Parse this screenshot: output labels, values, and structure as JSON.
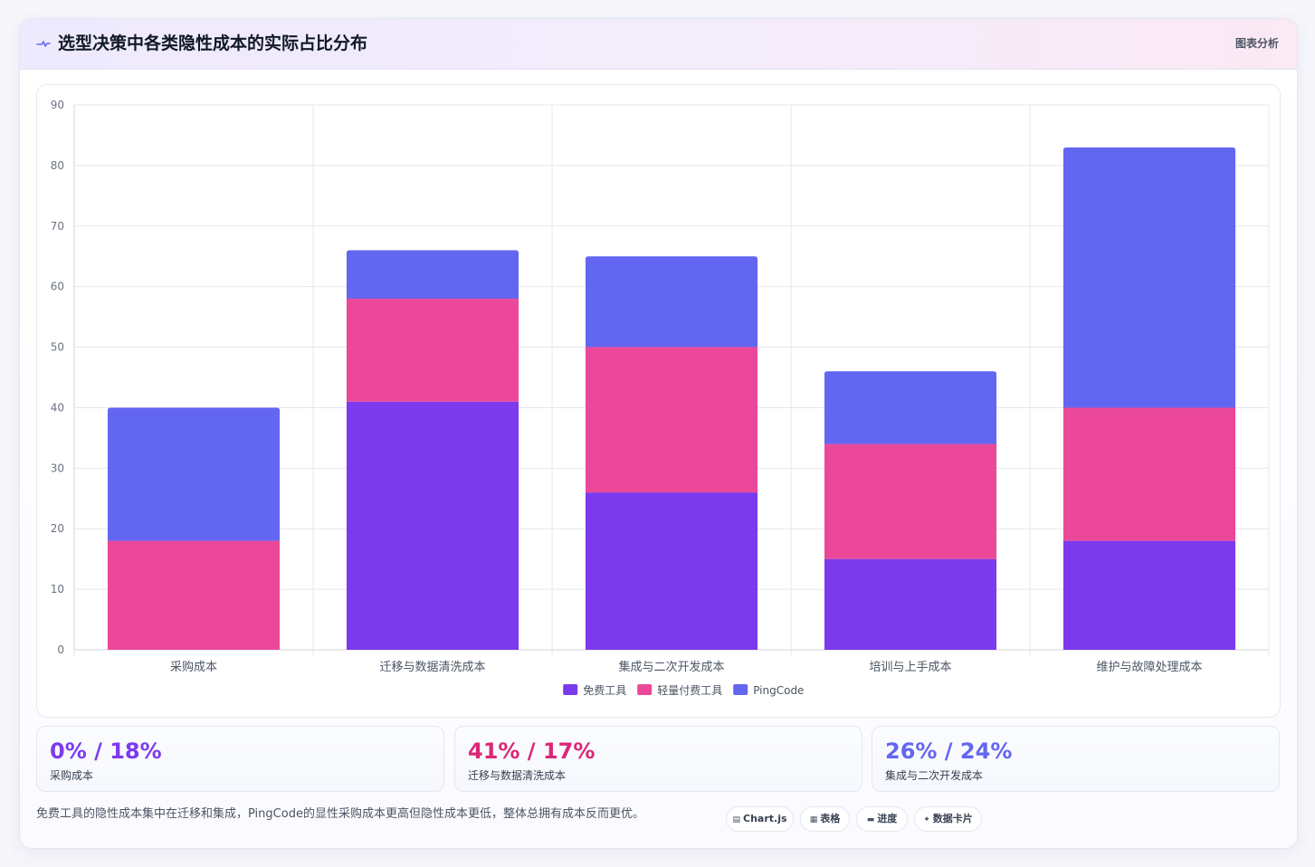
{
  "header": {
    "icon": "pulse-icon",
    "title": "选型决策中各类隐性成本的实际占比分布",
    "right_label": "图表分析"
  },
  "chart_data": {
    "type": "bar",
    "stacked": true,
    "categories": [
      "采购成本",
      "迁移与数据清洗成本",
      "集成与二次开发成本",
      "培训与上手成本",
      "维护与故障处理成本"
    ],
    "series": [
      {
        "name": "免费工具",
        "values": [
          0,
          41,
          26,
          15,
          18
        ],
        "color": "#7c3aed"
      },
      {
        "name": "轻量付费工具",
        "values": [
          18,
          17,
          24,
          19,
          22
        ],
        "color": "#ec4899"
      },
      {
        "name": "PingCode",
        "values": [
          22,
          8,
          15,
          12,
          43
        ],
        "color": "#6366f1"
      }
    ],
    "ylim": [
      0,
      90
    ],
    "yticks": [
      0,
      10,
      20,
      30,
      40,
      50,
      60,
      70,
      80,
      90
    ],
    "grid": true,
    "legend": "bottom"
  },
  "stats": [
    {
      "value": "0% / 18%",
      "label": "采购成本",
      "color": "#7c3aed"
    },
    {
      "value": "41% / 17%",
      "label": "迁移与数据清洗成本",
      "color": "#db2777"
    },
    {
      "value": "26% / 24%",
      "label": "集成与二次开发成本",
      "color": "#6366f1"
    }
  ],
  "note": "免费工具的隐性成本集中在迁移和集成，PingCode的显性采购成本更高但隐性成本更低，整体总拥有成本反而更优。",
  "chips": [
    {
      "icon": "chart-icon",
      "glyph": "▤",
      "label": "Chart.js"
    },
    {
      "icon": "table-icon",
      "glyph": "▦",
      "label": "表格"
    },
    {
      "icon": "progress-icon",
      "glyph": "▬",
      "label": "进度"
    },
    {
      "icon": "sparkle-icon",
      "glyph": "✦",
      "label": "数据卡片"
    }
  ]
}
